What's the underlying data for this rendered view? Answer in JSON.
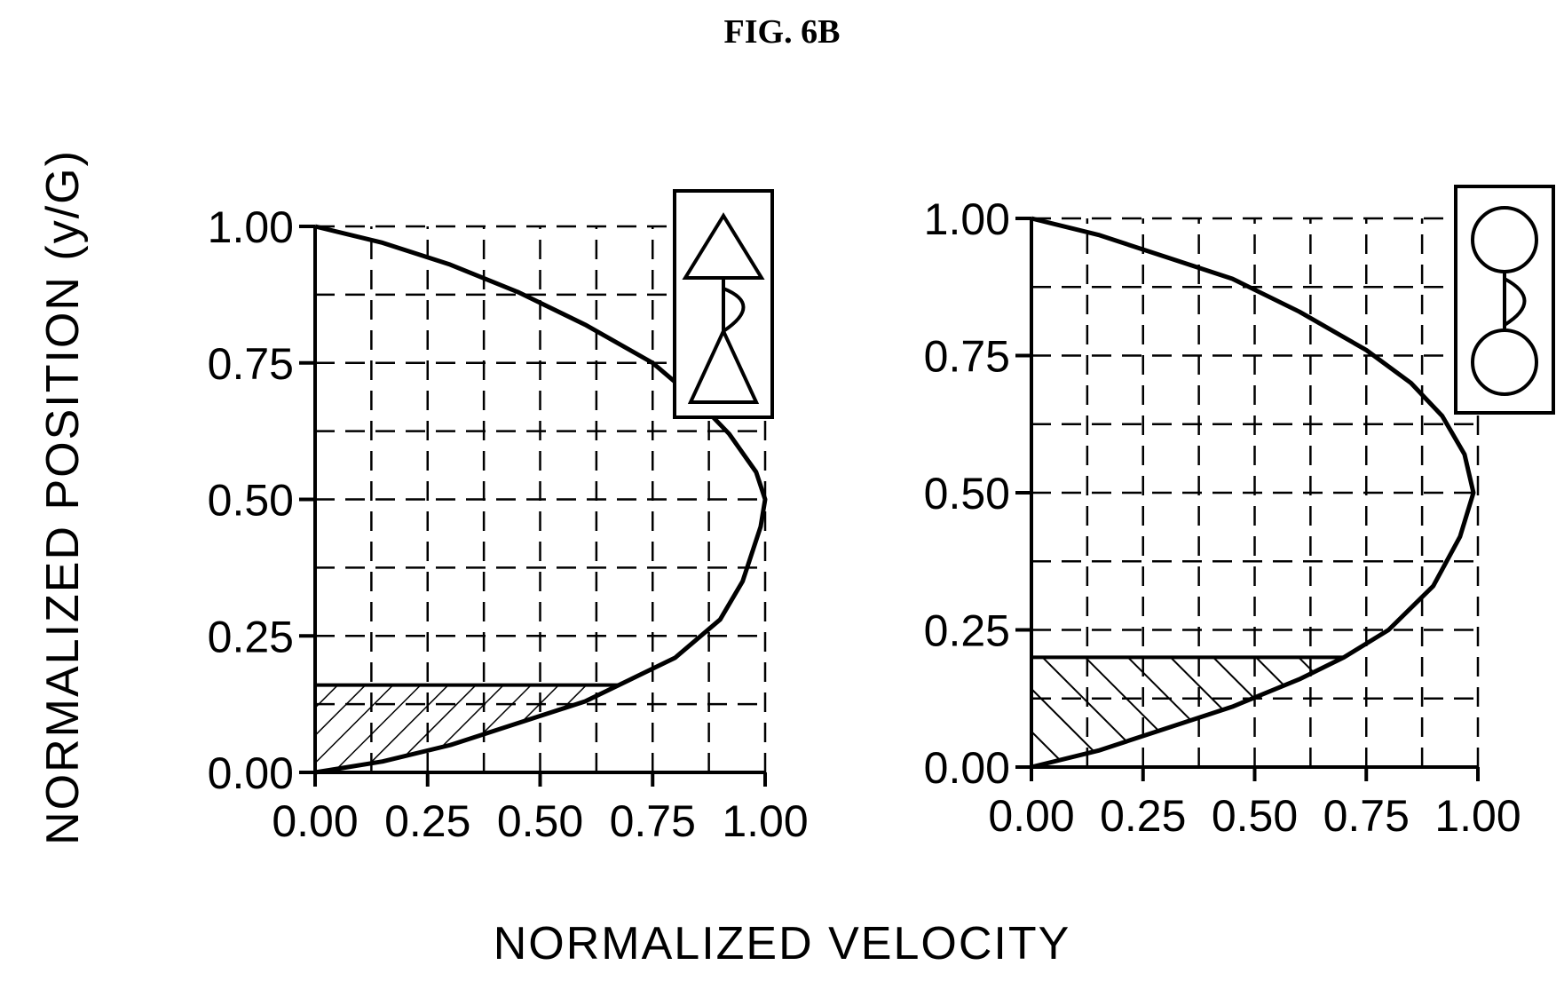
{
  "figure_title": "FIG. 6B",
  "ylabel": "NORMALIZED POSITION (y/G)",
  "xlabel": "NORMALIZED VELOCITY",
  "chart_data": [
    {
      "type": "line",
      "panel": "left",
      "title": "",
      "icon": "triangle-bump-triangle-icon",
      "xlim": [
        0,
        1
      ],
      "ylim": [
        0,
        1
      ],
      "x_ticks": [
        "0.00",
        "0.25",
        "0.50",
        "0.75",
        "1.00"
      ],
      "y_ticks": [
        "0.00",
        "0.25",
        "0.50",
        "0.75",
        "1.00"
      ],
      "grid": true,
      "grid_style": "dashed",
      "series": [
        {
          "curve": "velocity-profile",
          "points": [
            [
              0,
              0
            ],
            [
              0.15,
              0.02
            ],
            [
              0.3,
              0.05
            ],
            [
              0.45,
              0.09
            ],
            [
              0.6,
              0.13
            ],
            [
              0.7,
              0.17
            ],
            [
              0.8,
              0.21
            ],
            [
              0.9,
              0.28
            ],
            [
              0.95,
              0.35
            ],
            [
              0.99,
              0.45
            ],
            [
              1.0,
              0.5
            ],
            [
              0.98,
              0.55
            ],
            [
              0.92,
              0.62
            ],
            [
              0.85,
              0.68
            ],
            [
              0.75,
              0.75
            ],
            [
              0.6,
              0.82
            ],
            [
              0.45,
              0.88
            ],
            [
              0.3,
              0.93
            ],
            [
              0.15,
              0.97
            ],
            [
              0,
              1.0
            ]
          ]
        }
      ],
      "shaded_region": {
        "y_max": 0.16,
        "pattern": "hatch-forward"
      }
    },
    {
      "type": "line",
      "panel": "right",
      "title": "",
      "icon": "circle-bump-circle-icon",
      "xlim": [
        0,
        1
      ],
      "ylim": [
        0,
        1
      ],
      "x_ticks": [
        "0.00",
        "0.25",
        "0.50",
        "0.75",
        "1.00"
      ],
      "y_ticks": [
        "0.00",
        "0.25",
        "0.50",
        "0.75",
        "1.00"
      ],
      "grid": true,
      "grid_style": "dashed",
      "series": [
        {
          "curve": "velocity-profile",
          "points": [
            [
              0,
              0
            ],
            [
              0.15,
              0.03
            ],
            [
              0.3,
              0.07
            ],
            [
              0.45,
              0.11
            ],
            [
              0.6,
              0.16
            ],
            [
              0.7,
              0.2
            ],
            [
              0.8,
              0.25
            ],
            [
              0.9,
              0.33
            ],
            [
              0.96,
              0.42
            ],
            [
              0.99,
              0.5
            ],
            [
              0.97,
              0.57
            ],
            [
              0.92,
              0.64
            ],
            [
              0.85,
              0.7
            ],
            [
              0.75,
              0.76
            ],
            [
              0.6,
              0.83
            ],
            [
              0.45,
              0.89
            ],
            [
              0.3,
              0.93
            ],
            [
              0.15,
              0.97
            ],
            [
              0,
              1.0
            ]
          ]
        }
      ],
      "shaded_region": {
        "y_max": 0.2,
        "pattern": "hatch-backward"
      }
    }
  ]
}
